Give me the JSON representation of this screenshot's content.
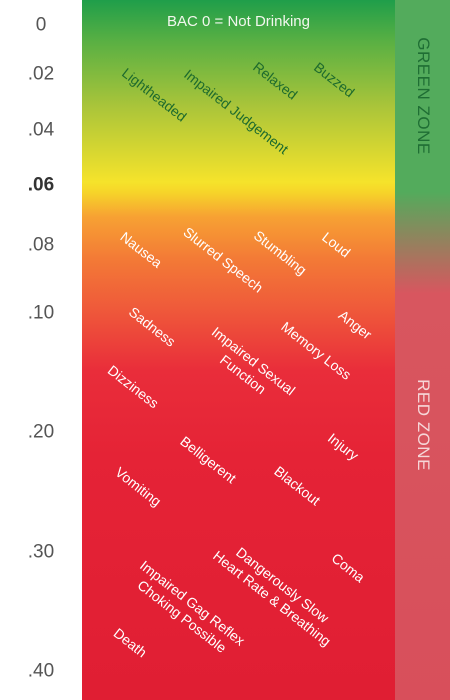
{
  "scale": {
    "ticks": [
      "0",
      ".02",
      ".04",
      ".06",
      ".08",
      ".10",
      ".20",
      ".30",
      ".40"
    ]
  },
  "header": {
    "title": "BAC 0 = Not Drinking"
  },
  "zones": {
    "green": "GREEN ZONE",
    "red": "RED ZONE"
  },
  "effects": {
    "lightheaded": "Lightheaded",
    "impaired_judgement": "Impaired Judgement",
    "relaxed": "Relaxed",
    "buzzed": "Buzzed",
    "nausea": "Nausea",
    "slurred_speech": "Slurred Speech",
    "stumbling": "Stumbling",
    "loud": "Loud",
    "sadness": "Sadness",
    "impaired_sexual_function": [
      "Impaired Sexual",
      "Function"
    ],
    "memory_loss": "Memory Loss",
    "anger": "Anger",
    "dizziness": "Dizziness",
    "belligerent": "Belligerent",
    "injury": "Injury",
    "vomiting": "Vomiting",
    "blackout": "Blackout",
    "dangerously_slow": [
      "Dangerously Slow",
      "Heart Rate & Breathing"
    ],
    "coma": "Coma",
    "impaired_gag_reflex": [
      "Impaired Gag Reflex",
      "Choking Possible"
    ],
    "death": "Death"
  }
}
